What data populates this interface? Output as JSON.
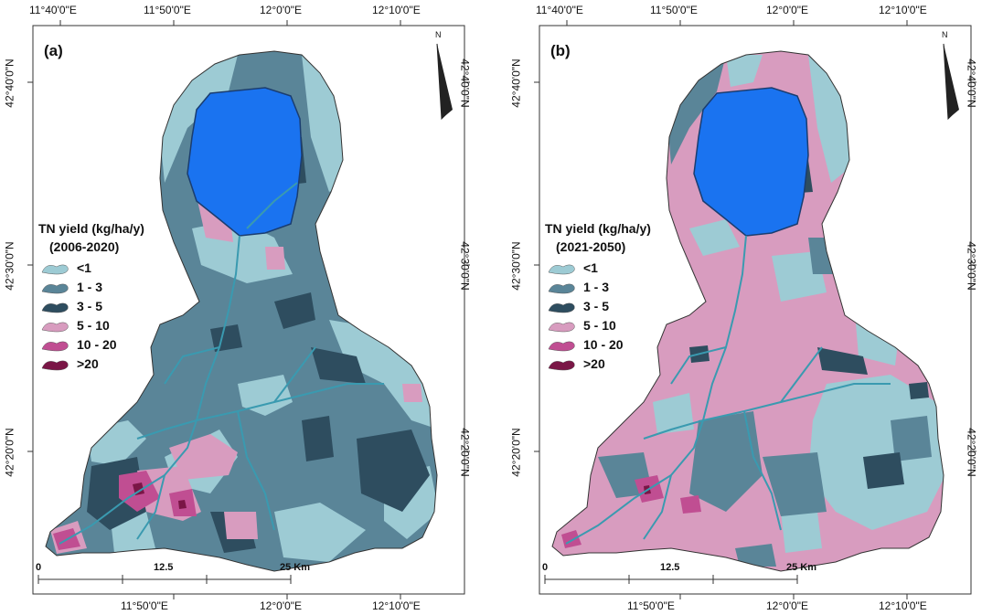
{
  "colors": {
    "lt1": "#9dcbd4",
    "c1_3": "#5a8598",
    "c3_5": "#2e4d5f",
    "c5_10": "#d89cbf",
    "c10_20": "#c04e92",
    "gt20": "#7a1646",
    "lake": "#1a73f0",
    "river": "#3a9ab0",
    "outline": "#333333"
  },
  "legend_classes": [
    {
      "label": "<1",
      "color_key": "lt1"
    },
    {
      "label": "1 - 3",
      "color_key": "c1_3"
    },
    {
      "label": "3 - 5",
      "color_key": "c3_5"
    },
    {
      "label": "5 - 10",
      "color_key": "c5_10"
    },
    {
      "label": "10 - 20",
      "color_key": "c10_20"
    },
    {
      "label": ">20",
      "color_key": "gt20"
    }
  ],
  "panels": [
    {
      "tag": "(a)",
      "legend_title": "TN yield (kg/ha/y)",
      "period": "(2006-2020)",
      "top_ticks": [
        "11°40'0\"E",
        "11°50'0\"E",
        "12°0'0\"E",
        "12°10'0\"E"
      ],
      "bottom_ticks": [
        "11°50'0\"E",
        "12°0'0\"E",
        "12°10'0\"E"
      ],
      "left_ticks": [
        "42°40'0\"N",
        "42°30'0\"N",
        "42°20'0\"N"
      ],
      "right_ticks": [
        "42°40'0\"N",
        "42°30'0\"N",
        "42°20'0\"N"
      ],
      "scale_labels": [
        "0",
        "12.5",
        "25 Km"
      ],
      "north_label": "N",
      "dominant": "c1_3",
      "secondary": "lt1"
    },
    {
      "tag": "(b)",
      "legend_title": "TN yield (kg/ha/y)",
      "period": "(2021-2050)",
      "top_ticks": [
        "11°40'0\"E",
        "11°50'0\"E",
        "12°0'0\"E",
        "12°10'0\"E"
      ],
      "bottom_ticks": [
        "11°50'0\"E",
        "12°0'0\"E",
        "12°10'0\"E"
      ],
      "left_ticks": [
        "42°40'0\"N",
        "42°30'0\"N",
        "42°20'0\"N"
      ],
      "right_ticks": [
        "42°40'0\"N",
        "42°30'0\"N",
        "42°20'0\"N"
      ],
      "scale_labels": [
        "0",
        "12.5",
        "25 Km"
      ],
      "north_label": "N",
      "dominant": "c5_10",
      "secondary": "lt1"
    }
  ]
}
